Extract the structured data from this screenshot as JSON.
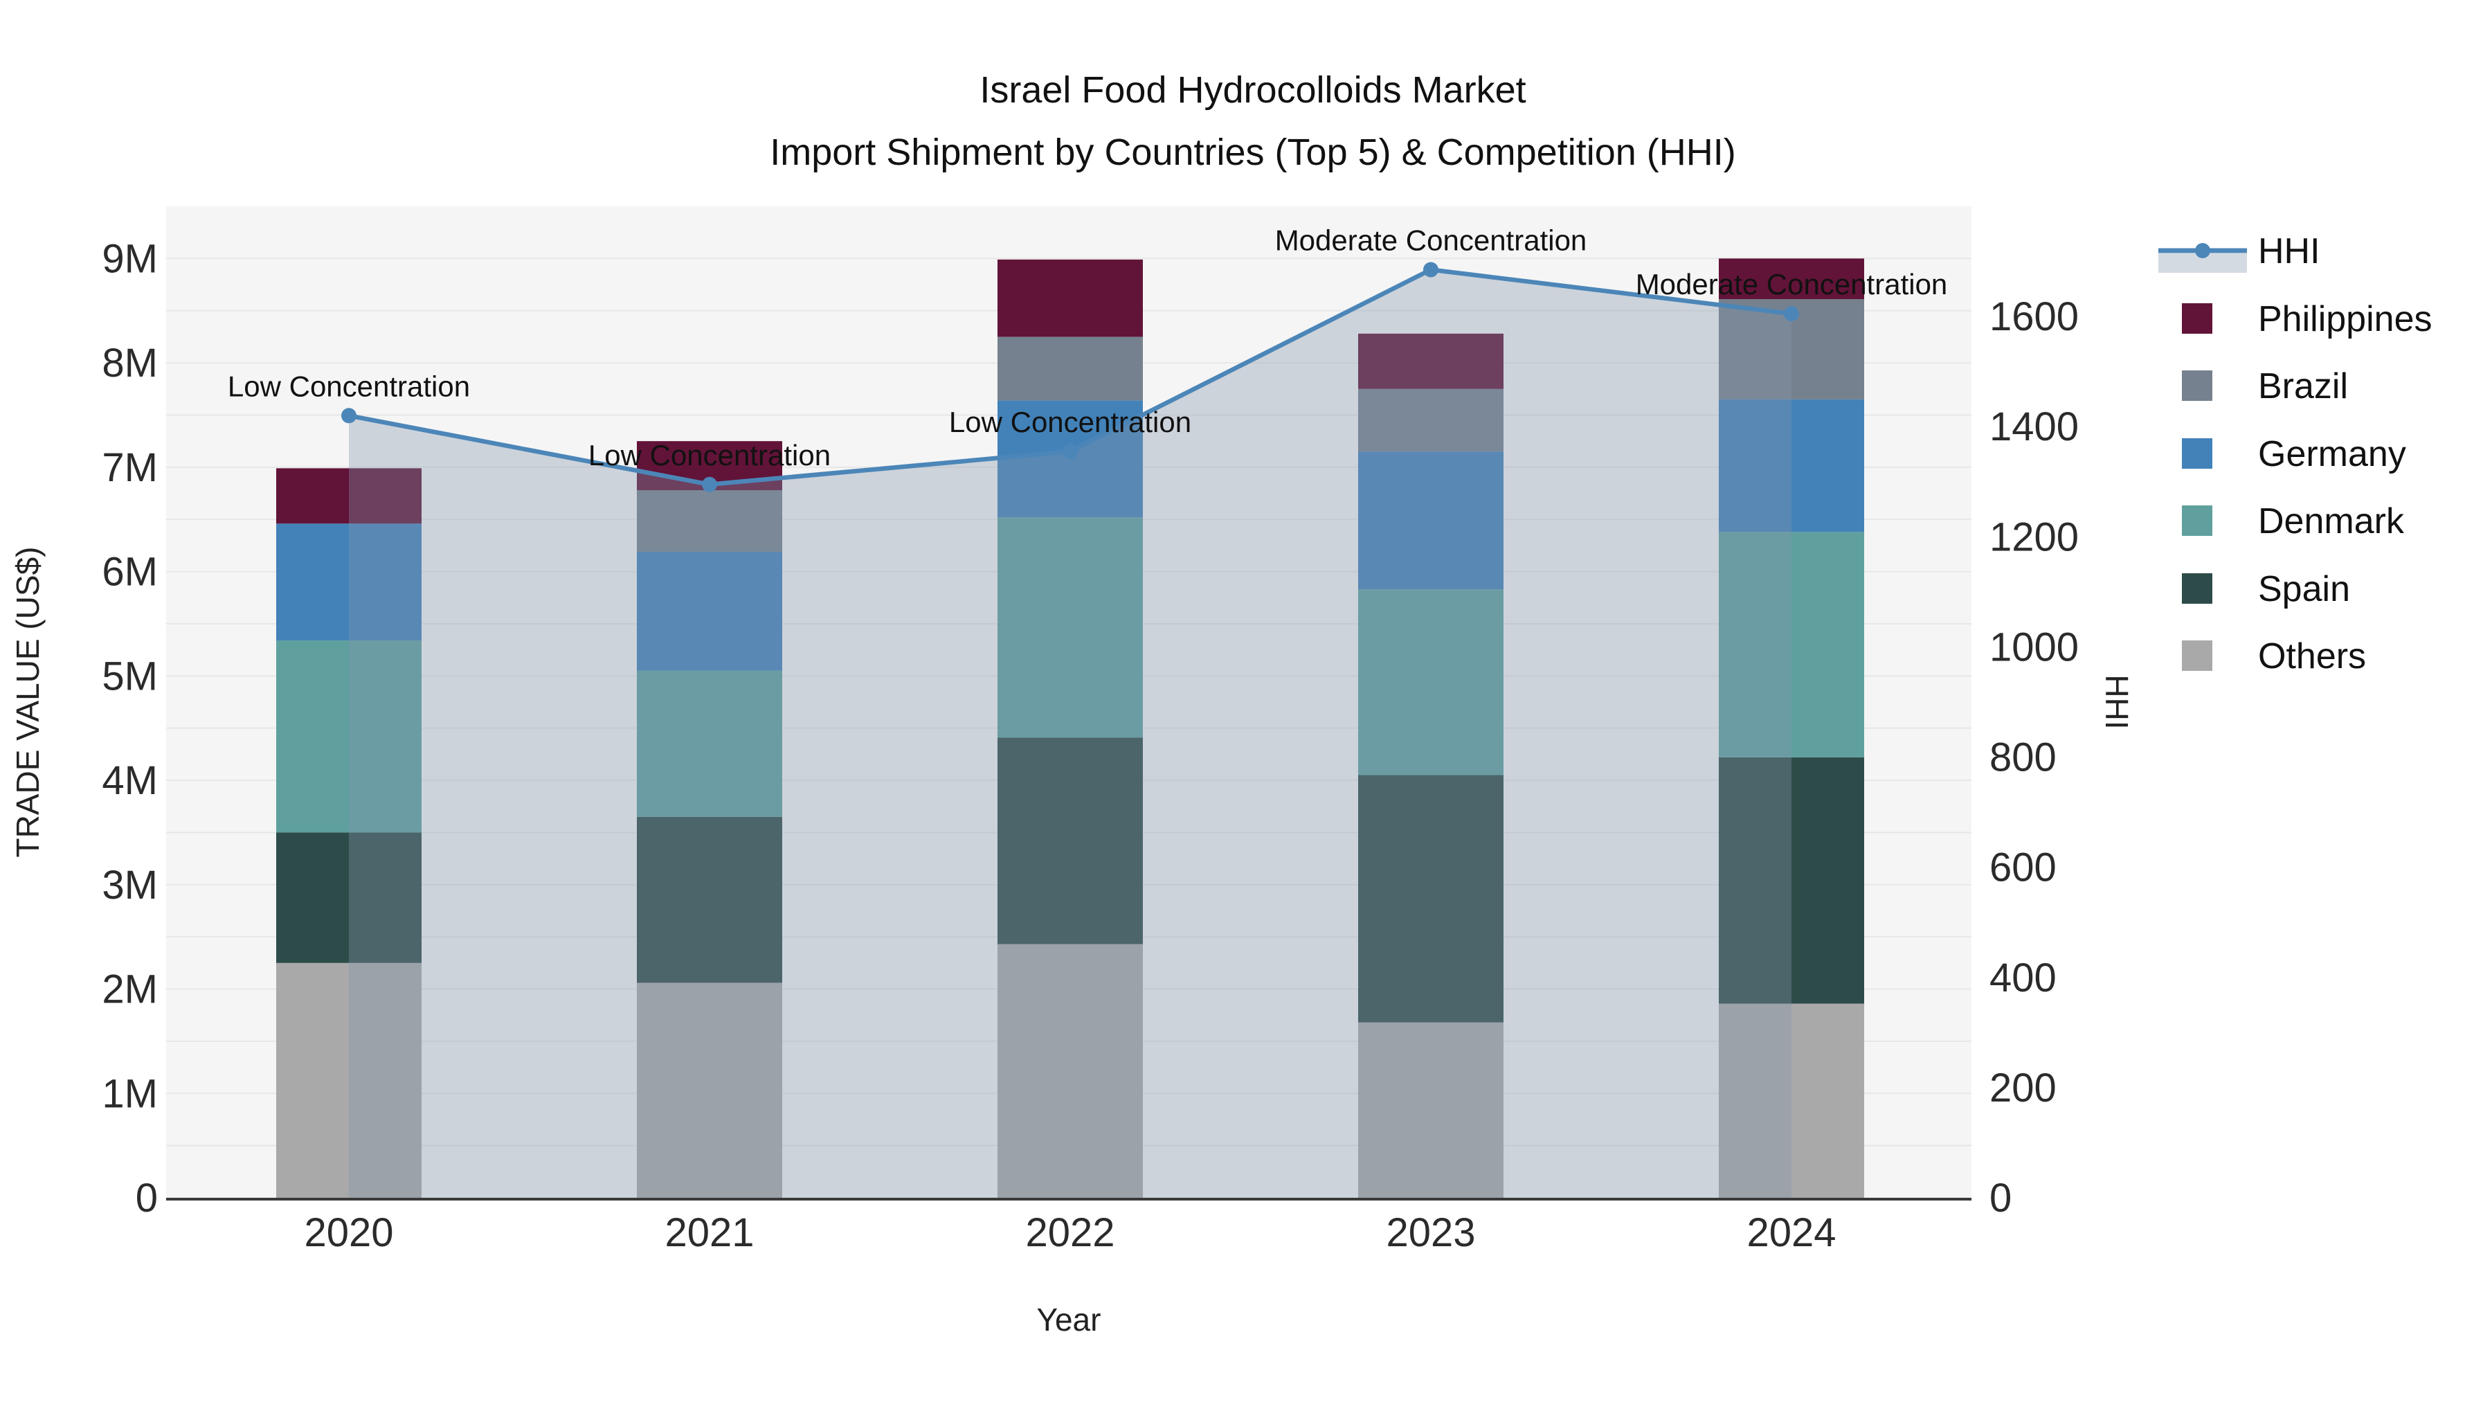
{
  "chart_data": {
    "type": "stacked-bar+line",
    "title": "Israel Food Hydrocolloids Market",
    "subtitle": "Import Shipment by Countries (Top 5) & Competition (HHI)",
    "xlabel": "Year",
    "ylabel_left": "TRADE VALUE (US$)",
    "ylabel_right": "HHI",
    "categories": [
      "2020",
      "2021",
      "2022",
      "2023",
      "2024"
    ],
    "bar_series_bottom_to_top": [
      {
        "name": "Others",
        "color": "#a9a9a9",
        "values": [
          2.25,
          2.06,
          2.43,
          1.68,
          1.86
        ]
      },
      {
        "name": "Spain",
        "color": "#2d4c49",
        "values": [
          1.25,
          1.59,
          1.98,
          2.37,
          2.36
        ]
      },
      {
        "name": "Denmark",
        "color": "#5fa09e",
        "values": [
          1.84,
          1.4,
          2.11,
          1.78,
          2.16
        ]
      },
      {
        "name": "Germany",
        "color": "#4282b8",
        "values": [
          1.12,
          1.14,
          1.12,
          1.32,
          1.27
        ]
      },
      {
        "name": "Brazil",
        "color": "#75818e",
        "values": [
          0.0,
          0.59,
          0.61,
          0.6,
          0.96
        ]
      },
      {
        "name": "Philippines",
        "color": "#621338",
        "values": [
          0.53,
          0.47,
          0.74,
          0.53,
          0.39
        ]
      }
    ],
    "line_series": {
      "name": "HHI",
      "color": "#4c86b8",
      "area_fill": "rgba(133,148,173,0.35)",
      "values": [
        1420,
        1295,
        1355,
        1685,
        1605
      ]
    },
    "annotations": [
      "Low Concentration",
      "Low Concentration",
      "Low Concentration",
      "Moderate Concentration",
      "Moderate Concentration"
    ],
    "y_left_axis": {
      "tick_labels": [
        "0",
        "1M",
        "2M",
        "3M",
        "4M",
        "5M",
        "6M",
        "7M",
        "8M",
        "9M"
      ],
      "tick_values": [
        0,
        1,
        2,
        3,
        4,
        5,
        6,
        7,
        8,
        9
      ],
      "max": 9.5,
      "units": "US$ millions"
    },
    "y_right_axis": {
      "tick_labels": [
        "0",
        "200",
        "400",
        "600",
        "800",
        "1000",
        "1200",
        "1400",
        "1600"
      ],
      "tick_values": [
        0,
        200,
        400,
        600,
        800,
        1000,
        1200,
        1400,
        1600
      ],
      "max": 1800
    },
    "legend_order": [
      "HHI",
      "Philippines",
      "Brazil",
      "Germany",
      "Denmark",
      "Spain",
      "Others"
    ],
    "plot_background": "#f5f5f5",
    "gridline_color": "#e7e7e7",
    "axisline_color": "#3a3a3a"
  }
}
